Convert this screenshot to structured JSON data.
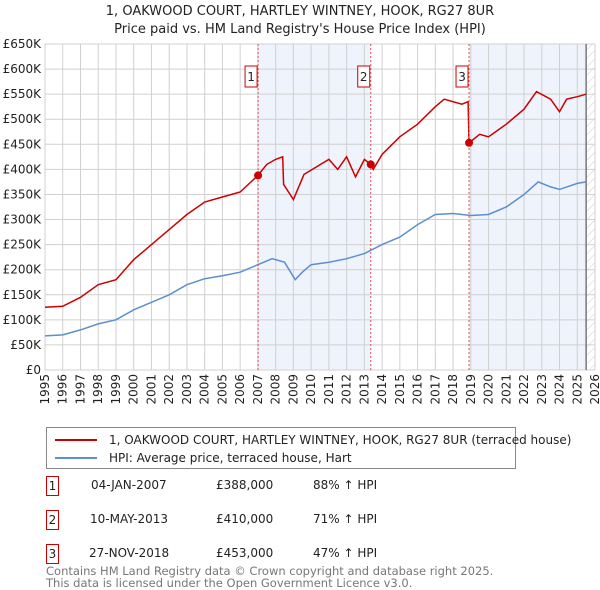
{
  "chart_data": {
    "type": "line",
    "title": "1, OAKWOOD COURT, HARTLEY WINTNEY, HOOK, RG27 8UR",
    "subtitle": "Price paid vs. HM Land Registry's House Price Index (HPI)",
    "xlim": [
      1995,
      2026
    ],
    "ylim": [
      0,
      650000
    ],
    "yticks": [
      {
        "v": 0,
        "l": "£0"
      },
      {
        "v": 50000,
        "l": "£50K"
      },
      {
        "v": 100000,
        "l": "£100K"
      },
      {
        "v": 150000,
        "l": "£150K"
      },
      {
        "v": 200000,
        "l": "£200K"
      },
      {
        "v": 250000,
        "l": "£250K"
      },
      {
        "v": 300000,
        "l": "£300K"
      },
      {
        "v": 350000,
        "l": "£350K"
      },
      {
        "v": 400000,
        "l": "£400K"
      },
      {
        "v": 450000,
        "l": "£450K"
      },
      {
        "v": 500000,
        "l": "£500K"
      },
      {
        "v": 550000,
        "l": "£550K"
      },
      {
        "v": 600000,
        "l": "£600K"
      },
      {
        "v": 650000,
        "l": "£650K"
      }
    ],
    "xticks": [
      "1995",
      "1996",
      "1997",
      "1998",
      "1999",
      "2000",
      "2001",
      "2002",
      "2003",
      "2004",
      "2005",
      "2006",
      "2007",
      "2008",
      "2009",
      "2010",
      "2011",
      "2012",
      "2013",
      "2014",
      "2015",
      "2016",
      "2017",
      "2018",
      "2019",
      "2020",
      "2021",
      "2022",
      "2023",
      "2024",
      "2025",
      "2026"
    ],
    "grid": true,
    "series": [
      {
        "name": "1, OAKWOOD COURT, HARTLEY WINTNEY, HOOK, RG27 8UR (terraced house)",
        "color": "#cc0000",
        "x": [
          1995,
          1996,
          1997,
          1998,
          1999,
          2000,
          2001,
          2002,
          2003,
          2004,
          2005,
          2006,
          2007.0,
          2007.5,
          2008,
          2008.4,
          2008.45,
          2009,
          2009.6,
          2010.3,
          2011,
          2011.5,
          2012,
          2012.5,
          2013,
          2013.36,
          2013.5,
          2014,
          2015,
          2016,
          2017,
          2017.5,
          2018.5,
          2018.85,
          2018.9,
          2019.5,
          2020,
          2021,
          2022,
          2022.7,
          2023.5,
          2024,
          2024.4,
          2025,
          2025.5
        ],
        "y": [
          125000,
          127000,
          145000,
          170000,
          180000,
          220000,
          250000,
          280000,
          310000,
          335000,
          345000,
          355000,
          388000,
          410000,
          420000,
          425000,
          370000,
          340000,
          390000,
          405000,
          420000,
          400000,
          425000,
          385000,
          420000,
          410000,
          400000,
          430000,
          465000,
          490000,
          525000,
          540000,
          530000,
          535000,
          453000,
          470000,
          465000,
          490000,
          520000,
          555000,
          540000,
          515000,
          540000,
          545000,
          550000
        ]
      },
      {
        "name": "HPI: Average price, terraced house, Hart",
        "color": "#5b8fd0",
        "x": [
          1995,
          1996,
          1997,
          1998,
          1999,
          2000,
          2001,
          2002,
          2003,
          2004,
          2005,
          2006,
          2007,
          2007.8,
          2008.5,
          2009.1,
          2009.5,
          2010,
          2011,
          2012,
          2013,
          2014,
          2015,
          2016,
          2017,
          2018,
          2019,
          2020,
          2021,
          2022,
          2022.8,
          2023.5,
          2024,
          2025,
          2025.5
        ],
        "y": [
          68000,
          70000,
          80000,
          92000,
          100000,
          120000,
          135000,
          150000,
          170000,
          182000,
          188000,
          195000,
          210000,
          222000,
          215000,
          180000,
          195000,
          210000,
          215000,
          222000,
          232000,
          250000,
          265000,
          290000,
          310000,
          312000,
          308000,
          310000,
          325000,
          350000,
          375000,
          365000,
          360000,
          372000,
          375000
        ]
      }
    ],
    "sales": [
      {
        "n": "1",
        "x": 2007.01,
        "y": 388000,
        "date": "04-JAN-2007",
        "price": "£388,000",
        "hpi": "88% ↑ HPI"
      },
      {
        "n": "2",
        "x": 2013.36,
        "y": 410000,
        "date": "10-MAY-2013",
        "price": "£410,000",
        "hpi": "71% ↑ HPI"
      },
      {
        "n": "3",
        "x": 2018.9,
        "y": 453000,
        "date": "27-NOV-2018",
        "price": "£453,000",
        "hpi": "47% ↑ HPI"
      }
    ],
    "legend": [
      "1, OAKWOOD COURT, HARTLEY WINTNEY, HOOK, RG27 8UR (terraced house)",
      "HPI: Average price, terraced house, Hart"
    ]
  },
  "footer": [
    "Contains HM Land Registry data © Crown copyright and database right 2025.",
    "This data is licensed under the Open Government Licence v3.0."
  ]
}
